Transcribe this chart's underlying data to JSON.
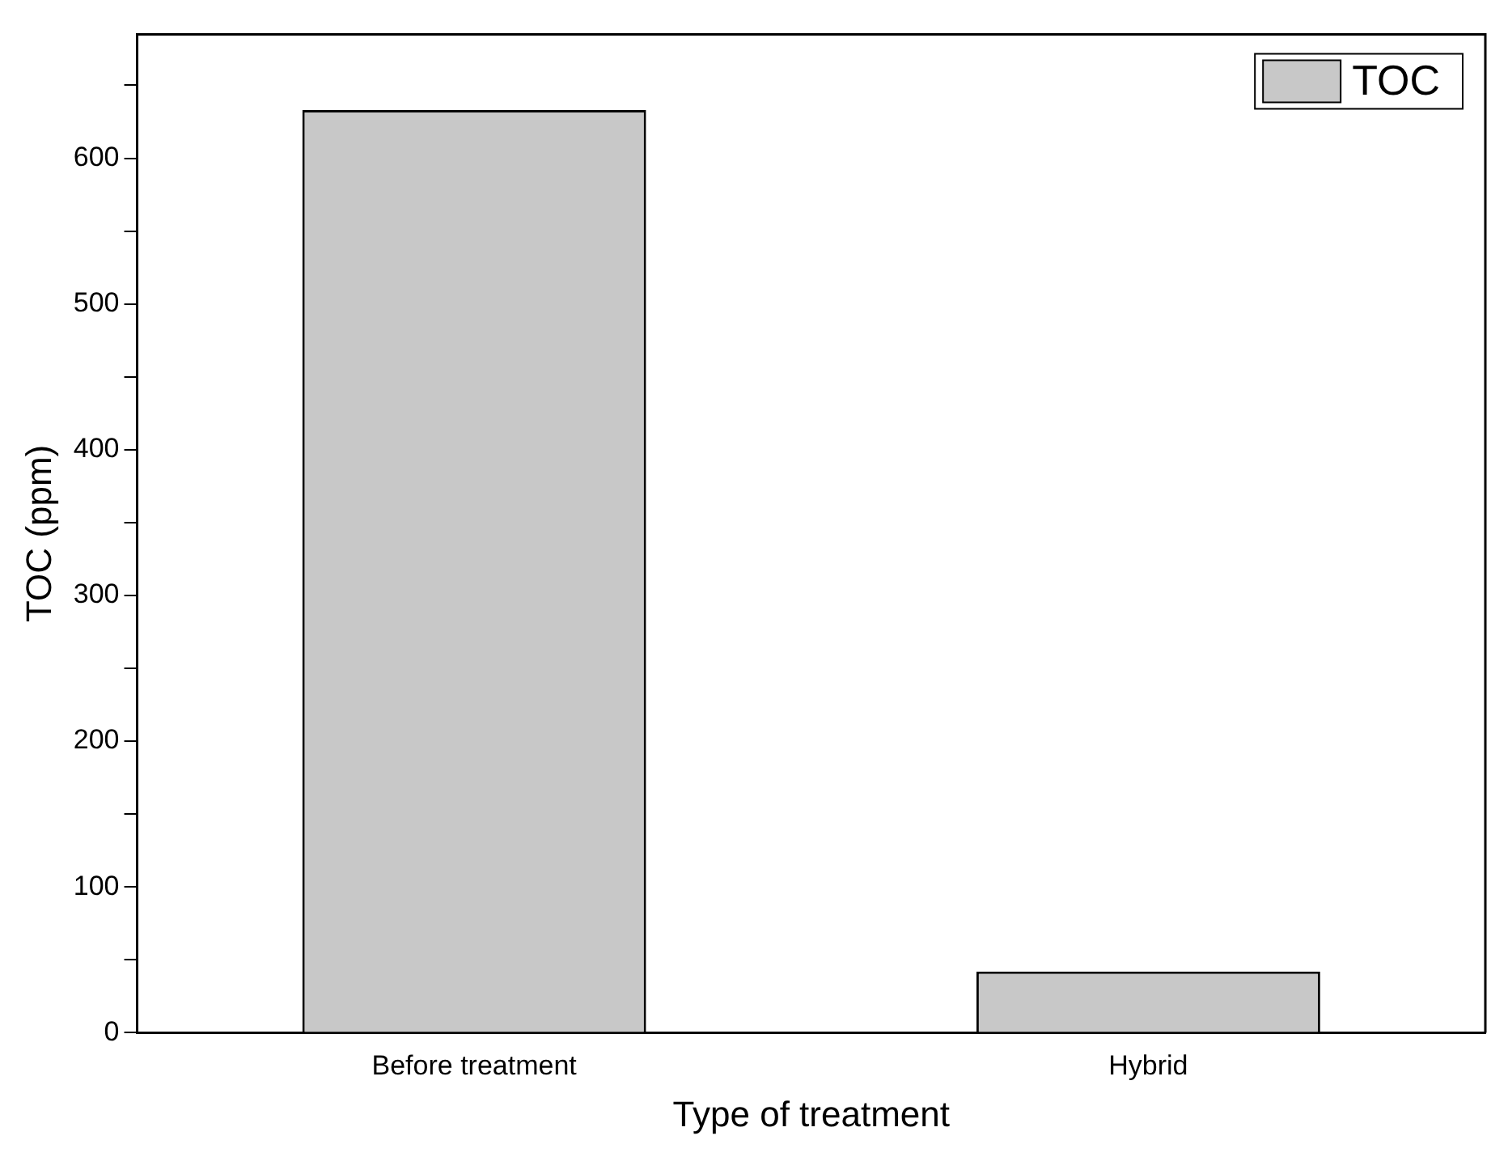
{
  "chart_data": {
    "type": "bar",
    "xlabel": "Type of treatment",
    "ylabel": "TOC (ppm)",
    "categories": [
      "Before treatment",
      "Hybrid"
    ],
    "series": [
      {
        "name": "TOC",
        "color": "#c8c8c8",
        "values": [
          633,
          42
        ]
      }
    ],
    "ylim": [
      0,
      685
    ],
    "yticks": [
      0,
      {
        "value": 50,
        "label": null
      },
      100,
      {
        "value": 150,
        "label": null
      },
      200,
      {
        "value": 250,
        "label": null
      },
      300,
      {
        "value": 350,
        "label": null
      },
      400,
      {
        "value": 450,
        "label": null
      },
      500,
      {
        "value": 550,
        "label": null
      },
      600,
      {
        "value": 650,
        "label": null
      }
    ],
    "grid": false,
    "legend": "top right"
  }
}
